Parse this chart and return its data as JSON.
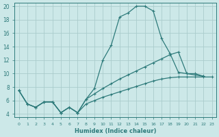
{
  "xlabel": "Humidex (Indice chaleur)",
  "bg_color": "#cce8e8",
  "line_color": "#2d7a7a",
  "grid_color": "#aacccc",
  "xlim": [
    -0.5,
    23.5
  ],
  "ylim": [
    3.5,
    20.5
  ],
  "xticks": [
    0,
    1,
    2,
    3,
    4,
    5,
    6,
    7,
    8,
    9,
    10,
    11,
    12,
    13,
    14,
    15,
    16,
    17,
    18,
    19,
    20,
    21,
    22,
    23
  ],
  "yticks": [
    4,
    6,
    8,
    10,
    12,
    14,
    16,
    18,
    20
  ],
  "line1_x": [
    0,
    1,
    2,
    3,
    4,
    5,
    6,
    7,
    8,
    9,
    10,
    11,
    12,
    13,
    14,
    15,
    16,
    17,
    18,
    19,
    20,
    21,
    22
  ],
  "line1_y": [
    7.5,
    5.5,
    5.0,
    5.8,
    5.8,
    4.2,
    5.0,
    4.2,
    6.2,
    7.8,
    12.0,
    14.2,
    18.4,
    19.0,
    20.0,
    20.0,
    19.3,
    15.2,
    13.0,
    10.2,
    10.0,
    9.8,
    9.6
  ],
  "line2_x": [
    0,
    1,
    2,
    3,
    4,
    5,
    6,
    7,
    8,
    9,
    10,
    11,
    12,
    13,
    14,
    15,
    16,
    17,
    18,
    19,
    20,
    21,
    22
  ],
  "line2_y": [
    7.5,
    5.5,
    5.0,
    5.8,
    5.8,
    4.2,
    5.0,
    4.2,
    6.2,
    7.0,
    7.8,
    8.5,
    9.2,
    9.8,
    10.4,
    11.0,
    11.6,
    12.2,
    12.8,
    13.2,
    10.0,
    10.0,
    9.6
  ],
  "line3_x": [
    0,
    1,
    2,
    3,
    4,
    5,
    6,
    7,
    8,
    9,
    10,
    11,
    12,
    13,
    14,
    15,
    16,
    17,
    18,
    19,
    20,
    21,
    22,
    23
  ],
  "line3_y": [
    7.5,
    5.5,
    5.0,
    5.8,
    5.8,
    4.2,
    5.0,
    4.2,
    5.5,
    6.0,
    6.5,
    6.9,
    7.3,
    7.7,
    8.1,
    8.5,
    8.9,
    9.2,
    9.4,
    9.5,
    9.5,
    9.5,
    9.5,
    9.5
  ]
}
